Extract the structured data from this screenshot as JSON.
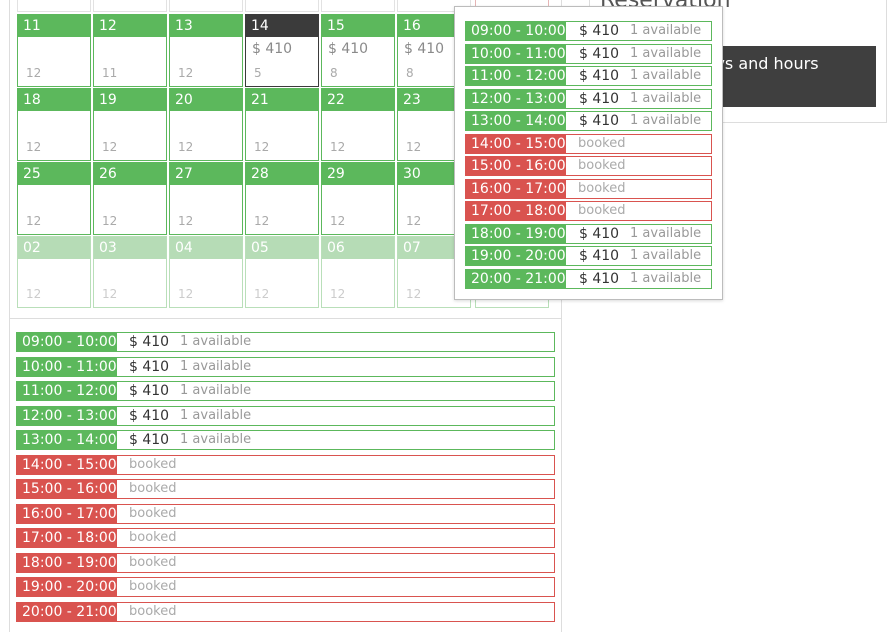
{
  "reservation": {
    "title": "Reservation",
    "hint_text": "Choose the days and hours"
  },
  "calendar": {
    "weeks": [
      [
        {
          "day": "11",
          "price": "",
          "count": "12",
          "state": "normal"
        },
        {
          "day": "12",
          "price": "",
          "count": "11",
          "state": "normal"
        },
        {
          "day": "13",
          "price": "",
          "count": "12",
          "state": "normal"
        },
        {
          "day": "14",
          "price": "$ 410",
          "count": "5",
          "state": "selected"
        },
        {
          "day": "15",
          "price": "$ 410",
          "count": "8",
          "state": "normal"
        },
        {
          "day": "16",
          "price": "$ 410",
          "count": "8",
          "state": "normal"
        }
      ],
      [
        {
          "day": "18",
          "price": "",
          "count": "12",
          "state": "normal"
        },
        {
          "day": "19",
          "price": "",
          "count": "12",
          "state": "normal"
        },
        {
          "day": "20",
          "price": "",
          "count": "12",
          "state": "normal"
        },
        {
          "day": "21",
          "price": "",
          "count": "12",
          "state": "normal"
        },
        {
          "day": "22",
          "price": "",
          "count": "12",
          "state": "normal"
        },
        {
          "day": "23",
          "price": "",
          "count": "12",
          "state": "normal"
        }
      ],
      [
        {
          "day": "25",
          "price": "",
          "count": "12",
          "state": "normal"
        },
        {
          "day": "26",
          "price": "",
          "count": "12",
          "state": "normal"
        },
        {
          "day": "27",
          "price": "",
          "count": "12",
          "state": "normal"
        },
        {
          "day": "28",
          "price": "",
          "count": "12",
          "state": "normal"
        },
        {
          "day": "29",
          "price": "",
          "count": "12",
          "state": "normal"
        },
        {
          "day": "30",
          "price": "",
          "count": "12",
          "state": "normal"
        }
      ],
      [
        {
          "day": "02",
          "price": "",
          "count": "12",
          "state": "muted"
        },
        {
          "day": "03",
          "price": "",
          "count": "12",
          "state": "muted"
        },
        {
          "day": "04",
          "price": "",
          "count": "12",
          "state": "muted"
        },
        {
          "day": "05",
          "price": "",
          "count": "12",
          "state": "muted"
        },
        {
          "day": "06",
          "price": "",
          "count": "12",
          "state": "muted"
        },
        {
          "day": "07",
          "price": "",
          "count": "12",
          "state": "muted"
        }
      ]
    ]
  },
  "slots": [
    {
      "time": "09:00 - 10:00",
      "price": "$ 410",
      "availability": "1 available",
      "booked": false
    },
    {
      "time": "10:00 - 11:00",
      "price": "$ 410",
      "availability": "1 available",
      "booked": false
    },
    {
      "time": "11:00 - 12:00",
      "price": "$ 410",
      "availability": "1 available",
      "booked": false
    },
    {
      "time": "12:00 - 13:00",
      "price": "$ 410",
      "availability": "1 available",
      "booked": false
    },
    {
      "time": "13:00 - 14:00",
      "price": "$ 410",
      "availability": "1 available",
      "booked": false
    },
    {
      "time": "14:00 - 15:00",
      "price": "",
      "availability": "booked",
      "booked": true
    },
    {
      "time": "15:00 - 16:00",
      "price": "",
      "availability": "booked",
      "booked": true
    },
    {
      "time": "16:00 - 17:00",
      "price": "",
      "availability": "booked",
      "booked": true
    },
    {
      "time": "17:00 - 18:00",
      "price": "",
      "availability": "booked",
      "booked": true
    },
    {
      "time": "18:00 - 19:00",
      "price": "",
      "availability": "booked",
      "booked": true
    },
    {
      "time": "19:00 - 20:00",
      "price": "",
      "availability": "booked",
      "booked": true
    },
    {
      "time": "20:00 - 21:00",
      "price": "",
      "availability": "booked",
      "booked": true
    }
  ],
  "popup_slots": [
    {
      "time": "09:00 - 10:00",
      "price": "$ 410",
      "availability": "1 available",
      "booked": false
    },
    {
      "time": "10:00 - 11:00",
      "price": "$ 410",
      "availability": "1 available",
      "booked": false
    },
    {
      "time": "11:00 - 12:00",
      "price": "$ 410",
      "availability": "1 available",
      "booked": false
    },
    {
      "time": "12:00 - 13:00",
      "price": "$ 410",
      "availability": "1 available",
      "booked": false
    },
    {
      "time": "13:00 - 14:00",
      "price": "$ 410",
      "availability": "1 available",
      "booked": false
    },
    {
      "time": "14:00 - 15:00",
      "price": "",
      "availability": "booked",
      "booked": true
    },
    {
      "time": "15:00 - 16:00",
      "price": "",
      "availability": "booked",
      "booked": true
    },
    {
      "time": "16:00 - 17:00",
      "price": "",
      "availability": "booked",
      "booked": true
    },
    {
      "time": "17:00 - 18:00",
      "price": "",
      "availability": "booked",
      "booked": true
    },
    {
      "time": "18:00 - 19:00",
      "price": "$ 410",
      "availability": "1 available",
      "booked": false
    },
    {
      "time": "19:00 - 20:00",
      "price": "$ 410",
      "availability": "1 available",
      "booked": false
    },
    {
      "time": "20:00 - 21:00",
      "price": "$ 410",
      "availability": "1 available",
      "booked": false
    }
  ],
  "colors": {
    "available": "#5cb85c",
    "booked": "#d9534f",
    "selected": "#3b3b3b"
  }
}
